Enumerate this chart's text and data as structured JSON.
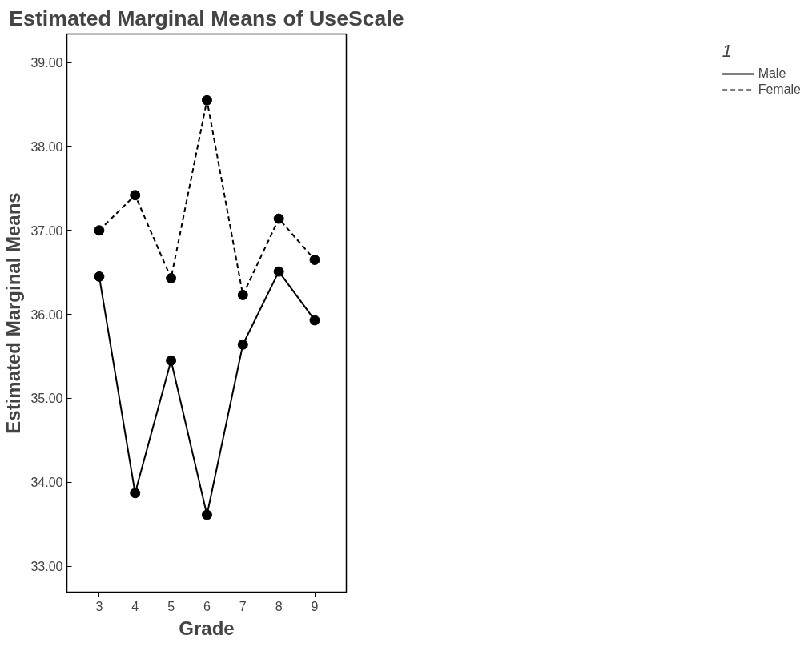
{
  "chart_data": {
    "type": "line",
    "title": "Estimated Marginal Means of UseScale",
    "xlabel": "Grade",
    "ylabel": "Estimated Marginal Means",
    "legend_title": "1",
    "x": [
      3,
      4,
      5,
      6,
      7,
      8,
      9
    ],
    "series": [
      {
        "name": "Male",
        "color": "#000000",
        "line_style": "solid",
        "values": [
          36.45,
          33.87,
          35.45,
          33.61,
          35.64,
          36.51,
          35.93
        ]
      },
      {
        "name": "Female",
        "color": "#000000",
        "line_style": "dashed",
        "values": [
          37.0,
          37.42,
          36.43,
          38.55,
          36.23,
          37.14,
          36.65
        ]
      }
    ],
    "xlim": [
      2.1,
      9.88
    ],
    "xticks": [
      3,
      4,
      5,
      6,
      7,
      8,
      9
    ],
    "ylim": [
      32.69,
      39.34
    ],
    "yticks": [
      {
        "value": 33,
        "label": "33.00"
      },
      {
        "value": 34,
        "label": "34.00"
      },
      {
        "value": 35,
        "label": "35.00"
      },
      {
        "value": 36,
        "label": "36.00"
      },
      {
        "value": 37,
        "label": "37.00"
      },
      {
        "value": 38,
        "label": "38.00"
      },
      {
        "value": 39,
        "label": "39.00"
      }
    ],
    "marker": "circle",
    "grid": false,
    "legend": "right"
  }
}
